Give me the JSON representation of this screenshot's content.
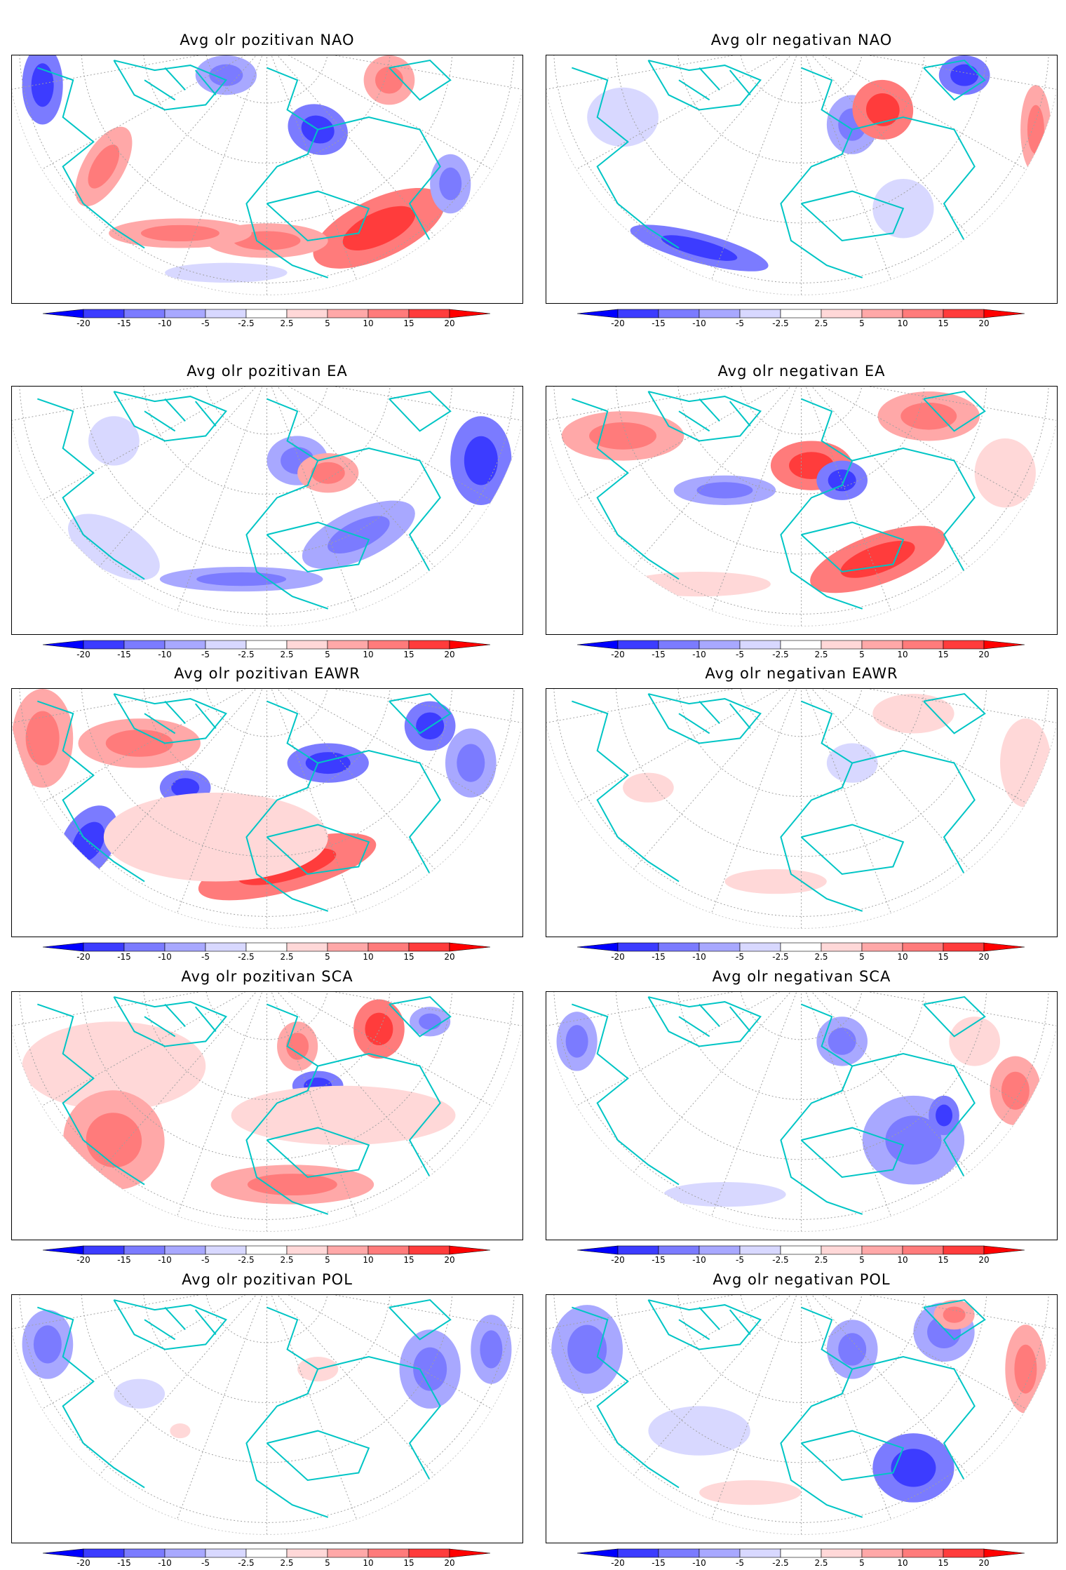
{
  "colorbar": {
    "colors": [
      "#0000ff",
      "#3c3cff",
      "#7b7bff",
      "#a8a8ff",
      "#d8d8ff",
      "#ffffff",
      "#ffd8d8",
      "#ffa8a8",
      "#ff7b7b",
      "#ff3c3c",
      "#ff0000"
    ],
    "labels": [
      "-20",
      "-15",
      "-10",
      "-5",
      "-2.5",
      "2.5",
      "5",
      "10",
      "15",
      "20"
    ]
  },
  "coast_color": "#00c5c5",
  "panels": [
    {
      "title": "Avg olr pozitivan NAO",
      "pattern": "nao_pos"
    },
    {
      "title": "Avg olr negativan NAO",
      "pattern": "nao_neg"
    },
    {
      "title": "Avg olr pozitivan EA",
      "pattern": "ea_pos"
    },
    {
      "title": "Avg olr negativan EA",
      "pattern": "ea_neg"
    },
    {
      "title": "Avg olr pozitivan EAWR",
      "pattern": "eawr_pos"
    },
    {
      "title": "Avg olr negativan EAWR",
      "pattern": "eawr_neg"
    },
    {
      "title": "Avg olr pozitivan SCA",
      "pattern": "sca_pos"
    },
    {
      "title": "Avg olr negativan SCA",
      "pattern": "sca_neg"
    },
    {
      "title": "Avg olr pozitivan POL",
      "pattern": "pol_pos"
    },
    {
      "title": "Avg olr negativan POL",
      "pattern": "pol_neg"
    }
  ]
}
